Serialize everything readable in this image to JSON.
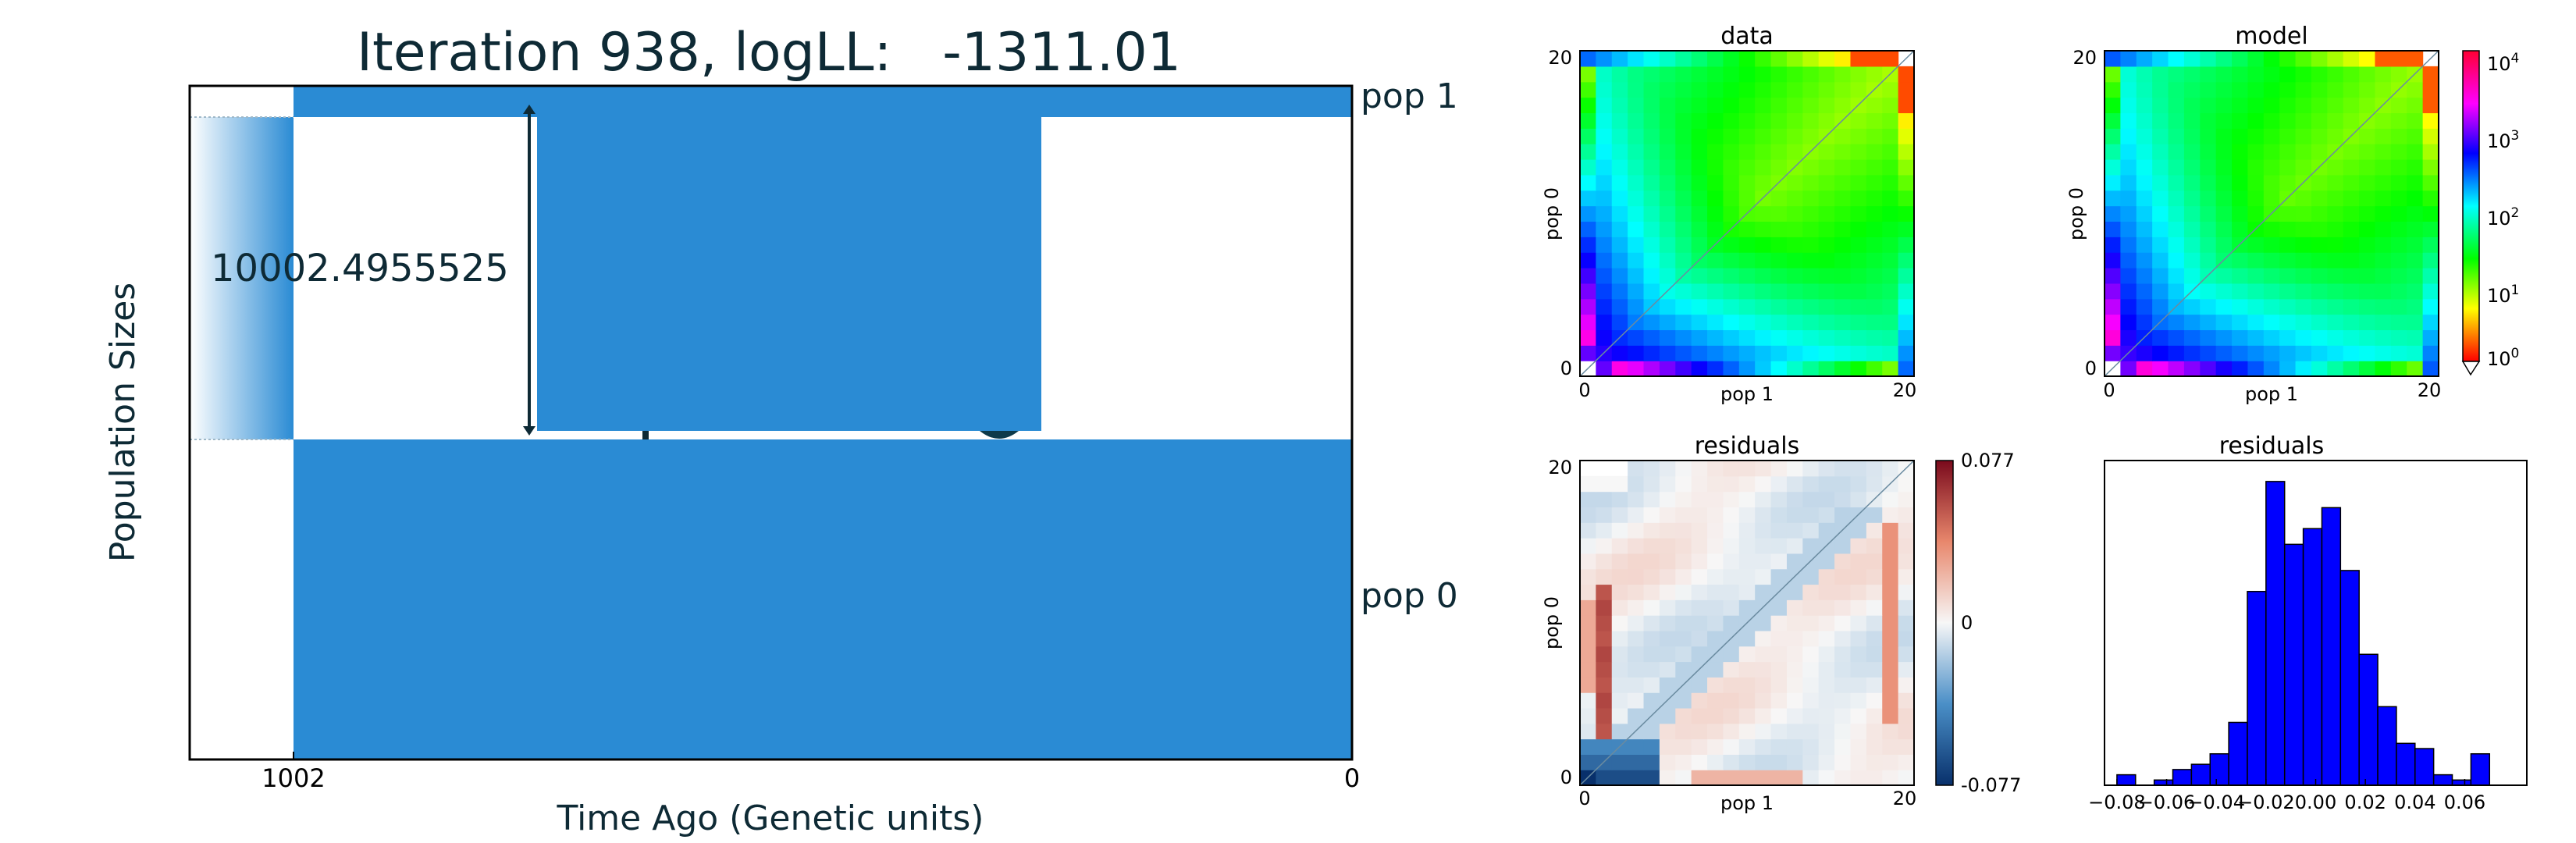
{
  "header": {
    "title": "Iteration 938, logLL:   -1311.01"
  },
  "demography": {
    "ylabel": "Population Sizes",
    "xlabel": "Time Ago (Genetic units)",
    "x_ticks": [
      "1002",
      "0"
    ],
    "pop_labels": [
      "pop 1",
      "pop 0"
    ],
    "size_annotation": "10002.4955525",
    "fill_color": "#2a8bd4"
  },
  "chart_data": [
    {
      "type": "heatmap",
      "title": "data",
      "xlabel": "pop 1",
      "ylabel": "pop 0",
      "x_ticks": [
        "0",
        "20"
      ],
      "y_ticks": [
        "0",
        "20"
      ],
      "grid_size": 21,
      "scale": "log",
      "range": [
        1,
        10000
      ]
    },
    {
      "type": "heatmap",
      "title": "model",
      "xlabel": "pop 1",
      "ylabel": "pop 0",
      "x_ticks": [
        "0",
        "20"
      ],
      "y_ticks": [
        "0",
        "20"
      ],
      "grid_size": 21,
      "scale": "log",
      "colorbar_ticks": [
        "10^0",
        "10^1",
        "10^2",
        "10^3",
        "10^4"
      ]
    },
    {
      "type": "heatmap",
      "title": "residuals",
      "xlabel": "pop 1",
      "ylabel": "pop 0",
      "x_ticks": [
        "0",
        "20"
      ],
      "y_ticks": [
        "0",
        "20"
      ],
      "grid_size": 21,
      "range": [
        -0.077,
        0.077
      ],
      "colorbar_ticks": [
        "0.077",
        "0",
        "-0.077"
      ]
    },
    {
      "type": "bar",
      "title": "residuals",
      "x_ticks": [
        "−0.08",
        "−0.06",
        "−0.04",
        "−0.02",
        "0.00",
        "0.02",
        "0.04",
        "0.06"
      ],
      "bin_start": -0.08,
      "bin_width": 0.0075,
      "values": [
        2,
        0,
        1,
        3,
        4,
        6,
        12,
        37,
        58,
        46,
        49,
        53,
        41,
        25,
        15,
        8,
        7,
        2,
        1,
        6
      ],
      "ylim": [
        0,
        62
      ],
      "bar_color": "#0000ff"
    }
  ]
}
